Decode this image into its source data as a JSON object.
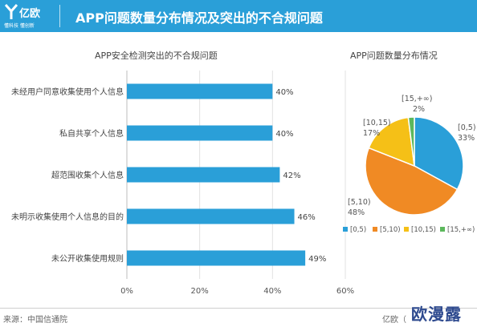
{
  "header": {
    "logo_name": "亿欧",
    "logo_sub": "懂科技 懂创新",
    "title": "APP问题数量分布情况及突出的不合规问题"
  },
  "colors": {
    "header_bg": "#2a9fd8",
    "bar": "#2a9fd8",
    "pie": [
      "#2a9fd8",
      "#f08a24",
      "#f5c017",
      "#5cb85c"
    ]
  },
  "chart_data": [
    {
      "type": "bar",
      "orientation": "horizontal",
      "title": "APP安全检测突出的不合规问题",
      "categories": [
        "未经用户同意收集使用个人信息",
        "私自共享个人信息",
        "超范围收集个人信息",
        "未明示收集使用个人信息的目的",
        "未公开收集使用规则"
      ],
      "values": [
        40,
        40,
        42,
        46,
        49
      ],
      "value_labels": [
        "40%",
        "40%",
        "42%",
        "46%",
        "49%"
      ],
      "xlim": [
        0,
        60
      ],
      "xticks": [
        "0%",
        "20%",
        "40%",
        "60%"
      ],
      "grid": true
    },
    {
      "type": "pie",
      "title": "APP问题数量分布情况",
      "labels": [
        "[0,5)",
        "[5,10)",
        "[10,15)",
        "[15,+∞)"
      ],
      "values": [
        33,
        48,
        17,
        2
      ],
      "value_labels": [
        "33%",
        "48%",
        "17%",
        "2%"
      ],
      "legend": "bottom"
    }
  ],
  "footer": {
    "source": "来源：中国信通院",
    "brand": "亿欧（",
    "watermark": "欧漫露"
  }
}
